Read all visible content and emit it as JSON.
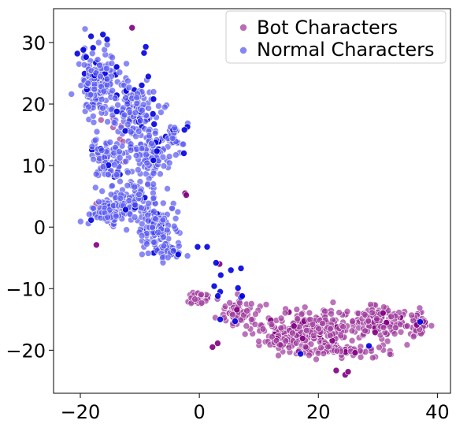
{
  "chart_data": {
    "type": "scatter",
    "title": "",
    "xlabel": "",
    "ylabel": "",
    "xlim": [
      -24.5,
      42.2
    ],
    "ylim": [
      -27.0,
      35.5
    ],
    "xticks": [
      -20,
      0,
      20,
      40
    ],
    "yticks": [
      -20,
      -10,
      0,
      10,
      20,
      30
    ],
    "grid": false,
    "legend_position": "top-right",
    "series": [
      {
        "name": "Bot Characters",
        "color": "#a03c9c",
        "dark_color": "#800080",
        "clusters": [
          {
            "cx": 18,
            "cy": -16.5,
            "sx": 8,
            "sy": 2.8,
            "n": 260
          },
          {
            "cx": 30,
            "cy": -15.5,
            "sx": 5,
            "sy": 2.5,
            "n": 120
          },
          {
            "cx": 36.5,
            "cy": -15.5,
            "sx": 1.6,
            "sy": 1.8,
            "n": 50
          },
          {
            "cx": 6,
            "cy": -14,
            "sx": 3,
            "sy": 1.8,
            "n": 70
          },
          {
            "cx": 0,
            "cy": -11.5,
            "sx": 2,
            "sy": 1.2,
            "n": 30
          },
          {
            "cx": 24,
            "cy": -20,
            "sx": 7,
            "sy": 0.8,
            "n": 60
          },
          {
            "cx": 14,
            "cy": -19,
            "sx": 4,
            "sy": 1.2,
            "n": 40
          },
          {
            "cx": -14,
            "cy": 15,
            "sx": 3,
            "sy": 6,
            "n": 12
          },
          {
            "cx": -16,
            "cy": 2,
            "sx": 2,
            "sy": 2,
            "n": 8
          }
        ],
        "points": [
          [
            -11.3,
            32.4
          ],
          [
            2.2,
            -19.5
          ],
          [
            23.0,
            -23.3
          ],
          [
            24.5,
            -24.0
          ],
          [
            25.0,
            -23.5
          ],
          [
            -17.3,
            -2.9
          ],
          [
            -2.4,
            5.5
          ],
          [
            -2.2,
            5.2
          ],
          [
            3.4,
            -6.0
          ]
        ]
      },
      {
        "name": "Normal Characters",
        "color": "#5c5cf2",
        "dark_color": "#0000e0",
        "clusters": [
          {
            "cx": -17,
            "cy": 23.5,
            "sx": 2.6,
            "sy": 4.5,
            "n": 180
          },
          {
            "cx": -11,
            "cy": 19,
            "sx": 4,
            "sy": 5,
            "n": 140
          },
          {
            "cx": -8,
            "cy": 12,
            "sx": 3,
            "sy": 4,
            "n": 120
          },
          {
            "cx": -15.5,
            "cy": 11,
            "sx": 2.5,
            "sy": 3,
            "n": 80
          },
          {
            "cx": -15,
            "cy": 2.5,
            "sx": 3,
            "sy": 2.5,
            "n": 120
          },
          {
            "cx": -7,
            "cy": 0,
            "sx": 3,
            "sy": 4,
            "n": 110
          },
          {
            "cx": -11,
            "cy": 5,
            "sx": 2.5,
            "sy": 3,
            "n": 50
          },
          {
            "cx": -5,
            "cy": -4,
            "sx": 2,
            "sy": 1.5,
            "n": 40
          },
          {
            "cx": -4,
            "cy": 14,
            "sx": 1.5,
            "sy": 3,
            "n": 25
          }
        ],
        "points": [
          [
            -20.5,
            28.2
          ],
          [
            -19.5,
            28.8
          ],
          [
            -18.2,
            31.0
          ],
          [
            -16.2,
            31.3
          ],
          [
            -15.5,
            30.5
          ],
          [
            -9.0,
            29.3
          ],
          [
            -9.3,
            28.3
          ],
          [
            -2.0,
            16.3
          ],
          [
            -2.5,
            15.8
          ],
          [
            -2.6,
            12.0
          ],
          [
            1.3,
            -3.2
          ],
          [
            -0.3,
            -3.2
          ],
          [
            2.8,
            -5.8
          ],
          [
            3.6,
            -7.8
          ],
          [
            5.3,
            -7.0
          ],
          [
            7.0,
            -6.7
          ],
          [
            2.5,
            -9.6
          ],
          [
            3.5,
            -10.5
          ],
          [
            7.0,
            -11.4
          ],
          [
            3.1,
            -11.2
          ],
          [
            6.5,
            -9.9
          ],
          [
            7.2,
            -11.2
          ],
          [
            17.0,
            -20.6
          ],
          [
            28.5,
            -19.3
          ],
          [
            37.1,
            -15.4
          ],
          [
            6.0,
            -15.3
          ],
          [
            3.5,
            -15.0
          ]
        ]
      }
    ]
  }
}
